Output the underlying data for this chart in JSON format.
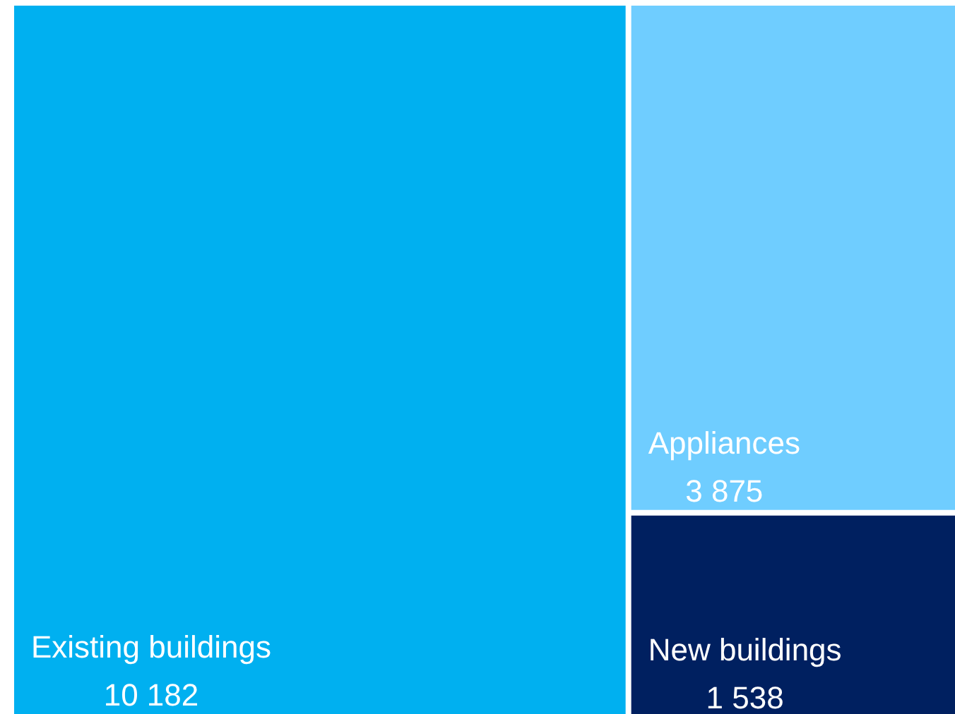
{
  "chart_data": {
    "type": "other",
    "categories": [
      "Existing buildings",
      "Appliances",
      "New buildings"
    ],
    "values": [
      10182,
      3875,
      1538
    ],
    "value_labels": [
      "10 182",
      "3 875",
      "1 538"
    ],
    "colors": [
      "#00b0f0",
      "#6fcdff",
      "#002060"
    ]
  }
}
